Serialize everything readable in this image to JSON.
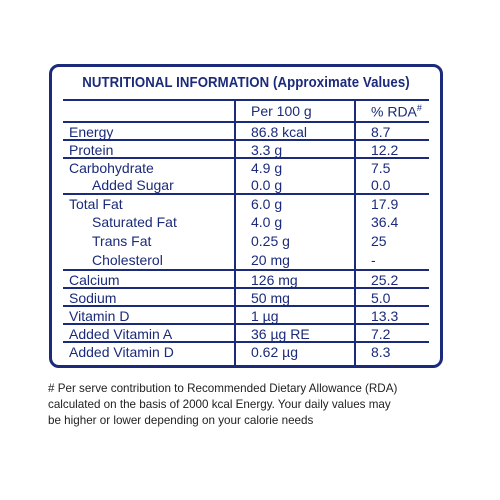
{
  "title": "NUTRITIONAL INFORMATION (Approximate Values)",
  "header": {
    "amount": "Per 100 g",
    "rda": "% RDA",
    "rda_mark": "#"
  },
  "rows": [
    {
      "name": "Energy",
      "amount": "86.8 kcal",
      "rda": "8.7"
    },
    {
      "name": "Protein",
      "amount": "3.3 g",
      "rda": "12.2"
    },
    {
      "name": "Carbohydrate",
      "amount": "4.9 g",
      "rda": "7.5"
    },
    {
      "name": "Added Sugar",
      "amount": "0.0 g",
      "rda": "0.0"
    },
    {
      "name": "Total Fat",
      "amount": "6.0 g",
      "rda": "17.9"
    },
    {
      "name": "Saturated Fat",
      "amount": "4.0 g",
      "rda": "36.4"
    },
    {
      "name": "Trans Fat",
      "amount": "0.25 g",
      "rda": "25"
    },
    {
      "name": "Cholesterol",
      "amount": "20 mg",
      "rda": "-"
    },
    {
      "name": "Calcium",
      "amount": "126 mg",
      "rda": "25.2"
    },
    {
      "name": "Sodium",
      "amount": "50 mg",
      "rda": "5.0"
    },
    {
      "name": "Vitamin D",
      "amount": "1 µg",
      "rda": "13.3"
    },
    {
      "name": "Added Vitamin A",
      "amount": "36 µg RE",
      "rda": "7.2"
    },
    {
      "name": "Added Vitamin D",
      "amount": "0.62 µg",
      "rda": "8.3"
    }
  ],
  "footnote": [
    "# Per serve contribution to Recommended Dietary Allowance (RDA)",
    "calculated on the basis of 2000 kcal Energy. Your daily values may",
    "be higher or lower depending on your calorie needs"
  ]
}
